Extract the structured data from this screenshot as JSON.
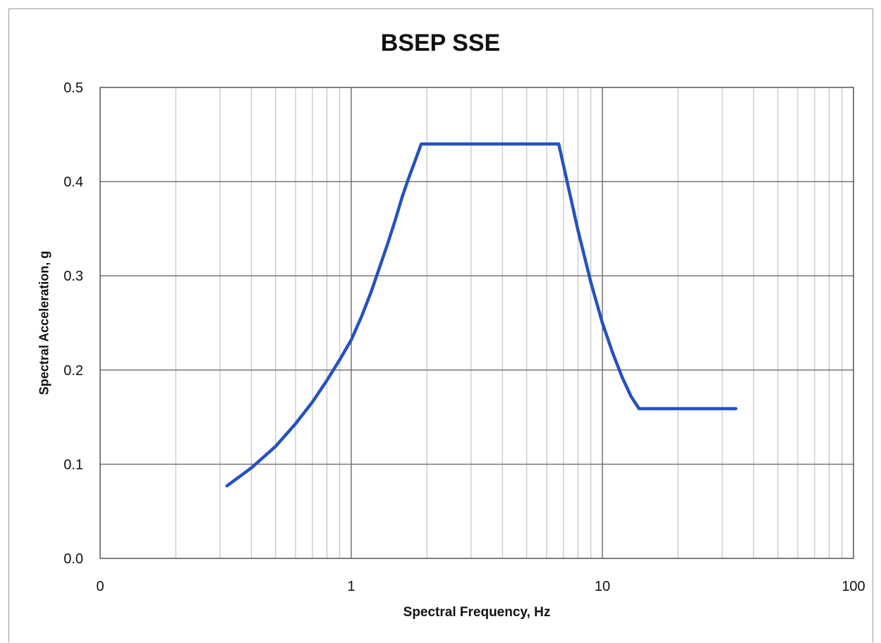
{
  "chart_data": {
    "type": "line",
    "title": "BSEP SSE",
    "xlabel": "Spectral Frequency, Hz",
    "ylabel": "Spectral Acceleration, g",
    "x_scale": "log",
    "xlim": [
      0.1,
      100
    ],
    "ylim": [
      0.0,
      0.5
    ],
    "x_ticks": [
      "0",
      "1",
      "10",
      "100"
    ],
    "y_ticks": [
      "0.0",
      "0.1",
      "0.2",
      "0.3",
      "0.4",
      "0.5"
    ],
    "grid": true,
    "series": [
      {
        "color": "#2452c0",
        "x": [
          0.32,
          0.4,
          0.5,
          0.6,
          0.7,
          0.8,
          0.9,
          1.0,
          1.1,
          1.2,
          1.3,
          1.4,
          1.5,
          1.6,
          1.7,
          1.8,
          1.9,
          6.5,
          6.7,
          8.0,
          9.0,
          10.0,
          11.0,
          12.0,
          13.0,
          14.0,
          34.0
        ],
        "y": [
          0.077,
          0.096,
          0.119,
          0.143,
          0.166,
          0.189,
          0.211,
          0.232,
          0.257,
          0.283,
          0.31,
          0.335,
          0.36,
          0.385,
          0.405,
          0.423,
          0.44,
          0.44,
          0.44,
          0.348,
          0.293,
          0.25,
          0.218,
          0.192,
          0.172,
          0.159,
          0.159
        ]
      }
    ]
  }
}
